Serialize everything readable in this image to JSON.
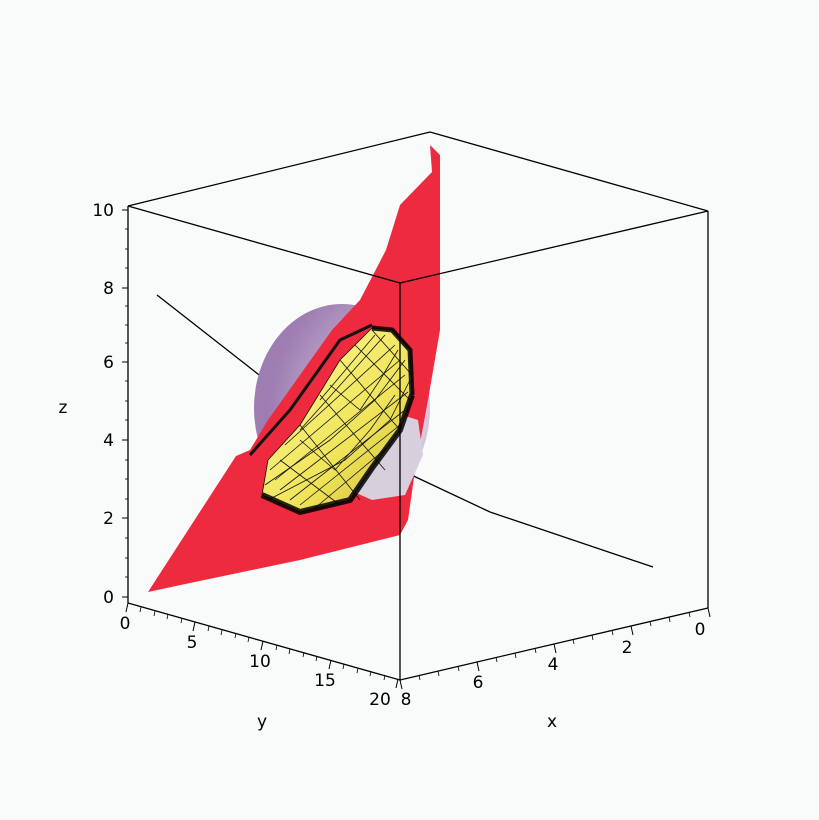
{
  "plot": {
    "type": "3d-surface-plot",
    "axes": {
      "z": {
        "label": "z",
        "ticks": [
          "0",
          "2",
          "4",
          "6",
          "8",
          "10"
        ]
      },
      "y": {
        "label": "y",
        "ticks": [
          "0",
          "5",
          "10",
          "15",
          "20"
        ]
      },
      "x": {
        "label": "x",
        "ticks": [
          "8",
          "6",
          "4",
          "2",
          "0"
        ]
      }
    },
    "colors": {
      "background": "#f9fafa",
      "plane": "#ee2a3e",
      "sphere": "#c9a9cf",
      "mesh_surface": "#f4ec63",
      "mesh_lines": "#111111",
      "frame": "#000000"
    }
  }
}
